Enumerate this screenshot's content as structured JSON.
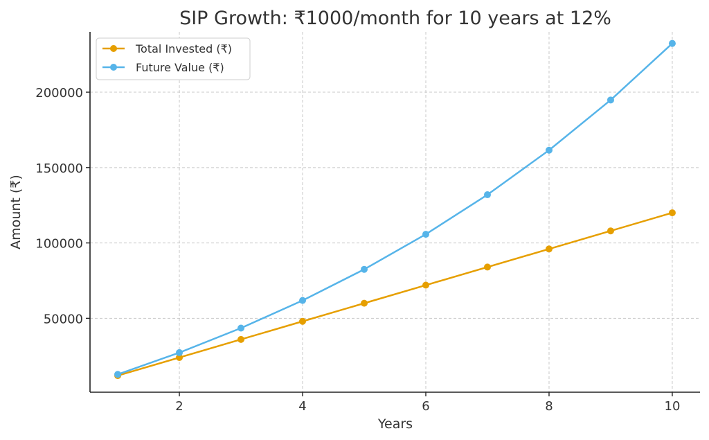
{
  "chart_data": {
    "type": "line",
    "title": "SIP Growth: ₹1000/month for 10 years at 12%",
    "xlabel": "Years",
    "ylabel": "Amount (₹)",
    "x": [
      1,
      2,
      3,
      4,
      5,
      6,
      7,
      8,
      9,
      10
    ],
    "xticks": [
      2,
      4,
      6,
      8,
      10
    ],
    "yticks": [
      50000,
      100000,
      150000,
      200000
    ],
    "xlim": [
      0.55,
      10.45
    ],
    "ylim": [
      1000,
      240000
    ],
    "grid": true,
    "legend_position": "top-left",
    "series": [
      {
        "name": "Total Invested (₹)",
        "color": "#E69F00",
        "values": [
          12000,
          24000,
          36000,
          48000,
          60000,
          72000,
          84000,
          96000,
          108000,
          120000
        ]
      },
      {
        "name": "Future Value (₹)",
        "color": "#56B4E9",
        "values": [
          12809,
          27243,
          43508,
          61839,
          82486,
          105752,
          131970,
          161516,
          194807,
          232339
        ]
      }
    ]
  }
}
